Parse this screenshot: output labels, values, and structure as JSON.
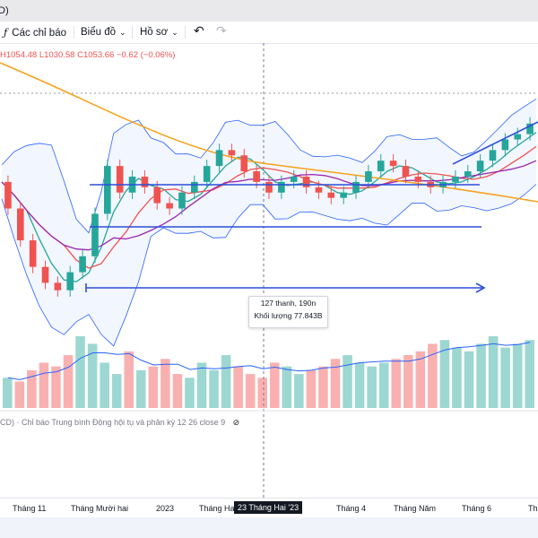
{
  "window": {
    "title_fragment": "D)"
  },
  "toolbar": {
    "indicators_label": "Các chỉ báo",
    "chart_type_label": "Biểu đồ",
    "profile_label": "Hồ sơ",
    "undo_icon": "undo-icon",
    "redo_icon": "redo-icon",
    "fx_icon": "indicator-fx-icon"
  },
  "ohlc": {
    "h": "H1054.48",
    "l": "L1030.58",
    "c": "C1053.66",
    "change": "−0.62 (−0.06%)"
  },
  "tooltip": {
    "bars": "127 thanh, 190n",
    "volume": "Khối lượng 77.843B"
  },
  "macd_legend": "CD) · Chỉ báo Trung bình Động hội tụ và phân kỳ 12 26 close 9",
  "macd_hide_icon": "eye-off-icon",
  "xaxis": {
    "labels": [
      "Tháng 11",
      "Tháng Mười hai",
      "2023",
      "Tháng Hai",
      "Tháng 4",
      "Tháng Năm",
      "Tháng 6",
      "Th"
    ],
    "crosshair_label": "23 Tháng Hai '23"
  },
  "colors": {
    "up": "#26a69a",
    "down": "#ef5350",
    "ma_long": "#f7a21b",
    "ma_mid": "#9c27b0",
    "bb": "#2962ff",
    "drawing": "#2b4fd8"
  },
  "chart_data": {
    "type": "candlestick",
    "price_series_approx": [
      1070,
      1045,
      1015,
      990,
      975,
      968,
      985,
      1000,
      1040,
      1085,
      1060,
      1075,
      1065,
      1050,
      1045,
      1060,
      1070,
      1085,
      1100,
      1095,
      1080,
      1070,
      1060,
      1070,
      1075,
      1065,
      1060,
      1055,
      1060,
      1070,
      1080,
      1090,
      1085,
      1075,
      1070,
      1065,
      1070,
      1075,
      1080,
      1090,
      1100,
      1110,
      1115,
      1125
    ],
    "volume_approx": [
      40,
      35,
      50,
      60,
      55,
      70,
      95,
      85,
      60,
      45,
      75,
      50,
      55,
      65,
      45,
      40,
      60,
      50,
      70,
      55,
      45,
      40,
      60,
      55,
      45,
      50,
      55,
      65,
      70,
      60,
      55,
      60,
      65,
      70,
      75,
      85,
      90,
      80,
      75,
      85,
      95,
      80,
      85,
      90
    ]
  }
}
